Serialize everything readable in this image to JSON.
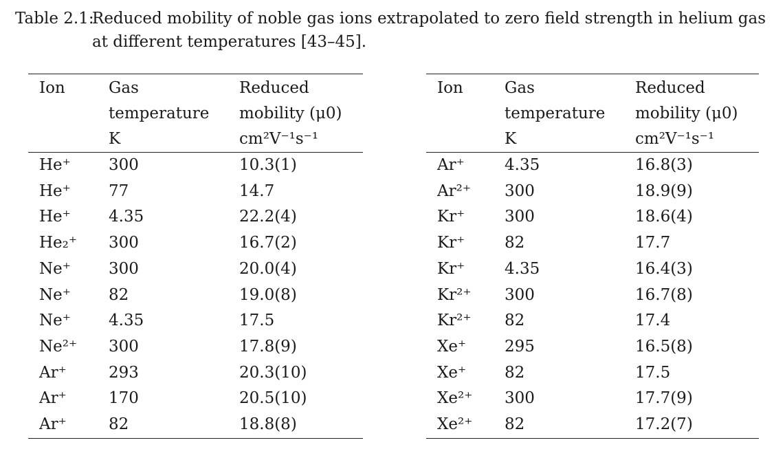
{
  "caption": {
    "label": "Table 2.1:",
    "line1": "Reduced mobility of noble gas ions extrapolated to zero field strength in helium gas",
    "line2": "at different temperatures [43–45]."
  },
  "headers": {
    "ion": "Ion",
    "temp_line1": "Gas",
    "temp_line2": "temperature",
    "temp_unit": "K",
    "mob_line1": "Reduced",
    "mob_line2": "mobility (μ0)",
    "mob_unit": "cm²V⁻¹s⁻¹"
  },
  "left_rows": [
    {
      "ion": "He⁺",
      "temp": "300",
      "mobility": "10.3(1)"
    },
    {
      "ion": "He⁺",
      "temp": "77",
      "mobility": "14.7"
    },
    {
      "ion": "He⁺",
      "temp": "4.35",
      "mobility": "22.2(4)"
    },
    {
      "ion": "He₂⁺",
      "temp": "300",
      "mobility": "16.7(2)"
    },
    {
      "ion": "Ne⁺",
      "temp": "300",
      "mobility": "20.0(4)"
    },
    {
      "ion": "Ne⁺",
      "temp": "82",
      "mobility": "19.0(8)"
    },
    {
      "ion": "Ne⁺",
      "temp": "4.35",
      "mobility": "17.5"
    },
    {
      "ion": "Ne²⁺",
      "temp": "300",
      "mobility": "17.8(9)"
    },
    {
      "ion": "Ar⁺",
      "temp": "293",
      "mobility": "20.3(10)"
    },
    {
      "ion": "Ar⁺",
      "temp": "170",
      "mobility": "20.5(10)"
    },
    {
      "ion": "Ar⁺",
      "temp": "82",
      "mobility": "18.8(8)"
    }
  ],
  "right_rows": [
    {
      "ion": "Ar⁺",
      "temp": "4.35",
      "mobility": "16.8(3)"
    },
    {
      "ion": "Ar²⁺",
      "temp": "300",
      "mobility": "18.9(9)"
    },
    {
      "ion": "Kr⁺",
      "temp": "300",
      "mobility": "18.6(4)"
    },
    {
      "ion": "Kr⁺",
      "temp": "82",
      "mobility": "17.7"
    },
    {
      "ion": "Kr⁺",
      "temp": "4.35",
      "mobility": "16.4(3)"
    },
    {
      "ion": "Kr²⁺",
      "temp": "300",
      "mobility": "16.7(8)"
    },
    {
      "ion": "Kr²⁺",
      "temp": "82",
      "mobility": "17.4"
    },
    {
      "ion": "Xe⁺",
      "temp": "295",
      "mobility": "16.5(8)"
    },
    {
      "ion": "Xe⁺",
      "temp": "82",
      "mobility": "17.5"
    },
    {
      "ion": "Xe²⁺",
      "temp": "300",
      "mobility": "17.7(9)"
    },
    {
      "ion": "Xe²⁺",
      "temp": "82",
      "mobility": "17.2(7)"
    }
  ]
}
